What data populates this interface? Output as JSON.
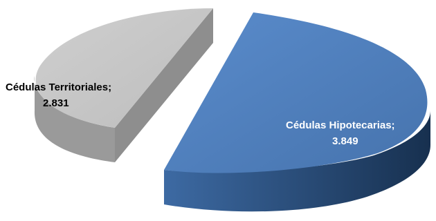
{
  "chart_data": {
    "type": "pie",
    "title": "",
    "categories": [
      "Cédulas Hipotecarias",
      "Cédulas Territoriales"
    ],
    "values": [
      3849,
      2831
    ],
    "value_labels": [
      "3.849",
      "2.831"
    ],
    "label_names": [
      "Cédulas Hipotecarias;",
      "Cédulas Territoriales;"
    ],
    "colors": [
      "#4f81bd",
      "#c0c0c0"
    ],
    "side_colors": [
      "#2e5584",
      "#8c8c8c"
    ],
    "label_colors": [
      "#ffffff",
      "#000000"
    ],
    "style": "3d-exploded",
    "legend": "none"
  }
}
